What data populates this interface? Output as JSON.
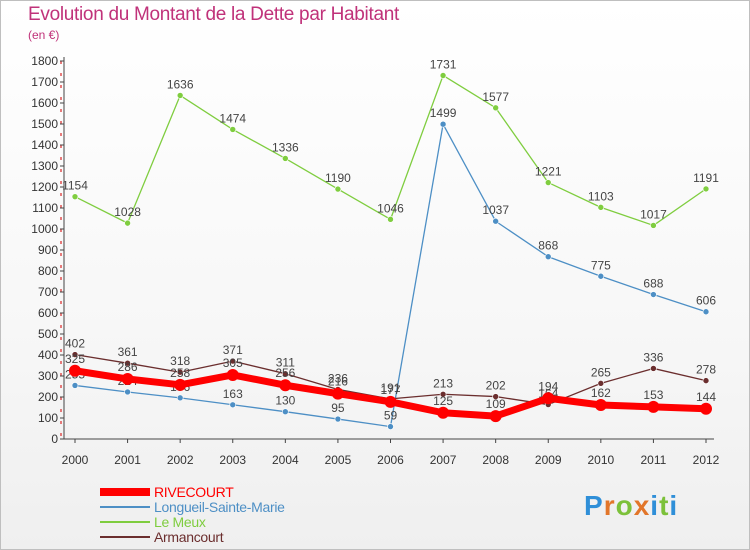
{
  "chart_data": {
    "type": "line",
    "title": "Evolution du Montant de la Dette par Habitant",
    "subtitle": "(en €)",
    "xlabel": "",
    "ylabel": "",
    "x": [
      "2000",
      "2001",
      "2002",
      "2003",
      "2004",
      "2005",
      "2006",
      "2007",
      "2008",
      "2009",
      "2010",
      "2011",
      "2012"
    ],
    "ylim": [
      0,
      1800
    ],
    "yticks": [
      "0",
      "100",
      "200",
      "300",
      "400",
      "500",
      "600",
      "700",
      "800",
      "900",
      "1000",
      "1100",
      "1200",
      "1300",
      "1400",
      "1500",
      "1600",
      "1700",
      "1800"
    ],
    "grid": false,
    "legend_position": "bottom-left",
    "series": [
      {
        "name": "RIVECOURT",
        "color": "#ff0000",
        "values": [
          325,
          286,
          258,
          305,
          256,
          216,
          177,
          125,
          109,
          194,
          162,
          153,
          144
        ],
        "labels": [
          "325",
          "286",
          "258",
          "305",
          "256",
          "216",
          "177",
          "125",
          "109",
          "194",
          "162",
          "153",
          "144"
        ]
      },
      {
        "name": "Longueil-Sainte-Marie",
        "color": "#4d8fc5",
        "values": [
          255,
          224,
          196,
          163,
          130,
          95,
          59,
          1499,
          1037,
          868,
          775,
          688,
          606
        ],
        "labels": [
          "255",
          "224",
          "196",
          "163",
          "130",
          "95",
          "59",
          "1499",
          "1037",
          "868",
          "775",
          "688",
          "606"
        ]
      },
      {
        "name": "Le Meux",
        "color": "#7fcd3f",
        "values": [
          1154,
          1028,
          1636,
          1474,
          1336,
          1190,
          1046,
          1731,
          1577,
          1221,
          1103,
          1017,
          1191
        ],
        "labels": [
          "1154",
          "1028",
          "1636",
          "1474",
          "1336",
          "1190",
          "1046",
          "1731",
          "1577",
          "1221",
          "1103",
          "1017",
          "1191"
        ]
      },
      {
        "name": "Armancourt",
        "color": "#6b2e2e",
        "values": [
          402,
          361,
          318,
          371,
          311,
          236,
          191,
          213,
          202,
          164,
          265,
          336,
          278
        ],
        "labels": [
          "402",
          "361",
          "318",
          "371",
          "311",
          "236",
          "191",
          "213",
          "202",
          "164",
          "265",
          "336",
          "278"
        ]
      }
    ]
  },
  "logo": {
    "letters": [
      "P",
      "r",
      "o",
      "x",
      "i",
      "t",
      "i"
    ]
  }
}
